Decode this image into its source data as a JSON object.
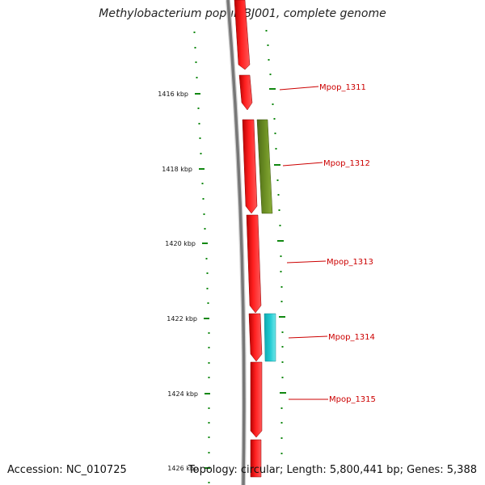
{
  "map": {
    "title": "Methylobacterium populi BJ001, complete genome",
    "accession": "Accession: NC_010725",
    "stats": "Topology: circular; Length: 5,800,441 bp; Genes: 5,388"
  },
  "colors": {
    "forward_gene": "#ff1a1a",
    "reverse_gene_olive": "#6b8e23",
    "reverse_gene_cyan": "#1fc9d0",
    "backbone": "#7a7a7a",
    "tick": "#118811",
    "label": "#cc0000"
  },
  "scale_labels": [
    "1416 kbp",
    "1418 kbp",
    "1420 kbp",
    "1422 kbp",
    "1424 kbp",
    "1426 kbp"
  ],
  "gene_labels": [
    "Mpop_1311",
    "Mpop_1312",
    "Mpop_1313",
    "Mpop_1314",
    "Mpop_1315"
  ]
}
